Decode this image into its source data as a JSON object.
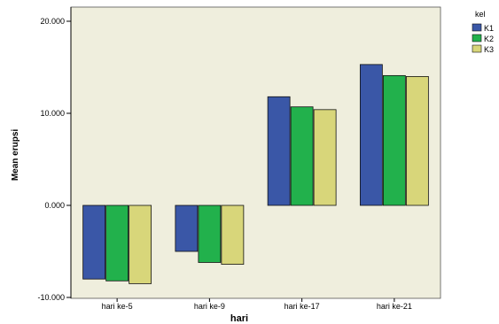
{
  "chart_data": {
    "type": "bar",
    "title": "",
    "xlabel": "hari",
    "ylabel": "Mean erupsi",
    "categories": [
      "hari ke-5",
      "hari ke-9",
      "hari ke-17",
      "hari ke-21"
    ],
    "series": [
      {
        "name": "K1",
        "color": "#3a57a7",
        "values": [
          -8.0,
          -5.0,
          11.8,
          15.3
        ]
      },
      {
        "name": "K2",
        "color": "#22b14c",
        "values": [
          -8.2,
          -6.2,
          10.7,
          14.1
        ]
      },
      {
        "name": "K3",
        "color": "#d8d67a",
        "values": [
          -8.5,
          -6.4,
          10.4,
          14.0
        ]
      }
    ],
    "ylim": [
      -10,
      20
    ],
    "yticks": [
      -10,
      0,
      10,
      20
    ],
    "ytick_labels": [
      "-10.000",
      "0.000",
      "10.000",
      "20.000"
    ],
    "legend": {
      "title": "kel",
      "position": "top-right"
    },
    "grid": false,
    "plot_background": "#efeedd"
  }
}
